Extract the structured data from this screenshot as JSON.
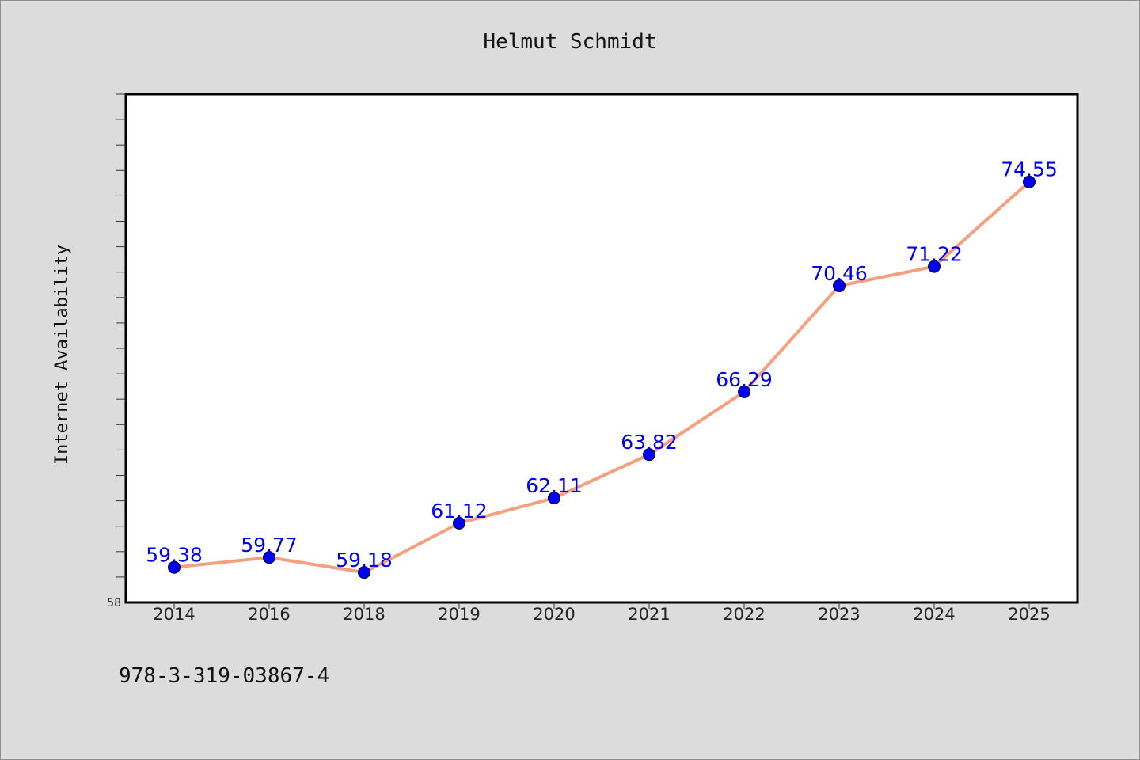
{
  "footer_text": "978-3-319-03867-4",
  "chart_data": {
    "type": "line",
    "title": "Helmut Schmidt",
    "xlabel": "",
    "ylabel": "Internet Availability",
    "categories": [
      "2014",
      "2016",
      "2018",
      "2019",
      "2020",
      "2021",
      "2022",
      "2023",
      "2024",
      "2025"
    ],
    "series": [
      {
        "values": [
          59.38,
          59.77,
          59.18,
          61.12,
          62.11,
          63.82,
          66.29,
          70.46,
          71.22,
          74.55
        ],
        "line_color": "#f4a07f",
        "marker_color": "#0000ee"
      }
    ],
    "ylim": [
      58,
      78
    ],
    "y_tick_labels": [
      "58"
    ],
    "show_data_labels": true,
    "grid": false,
    "legend": "none"
  }
}
